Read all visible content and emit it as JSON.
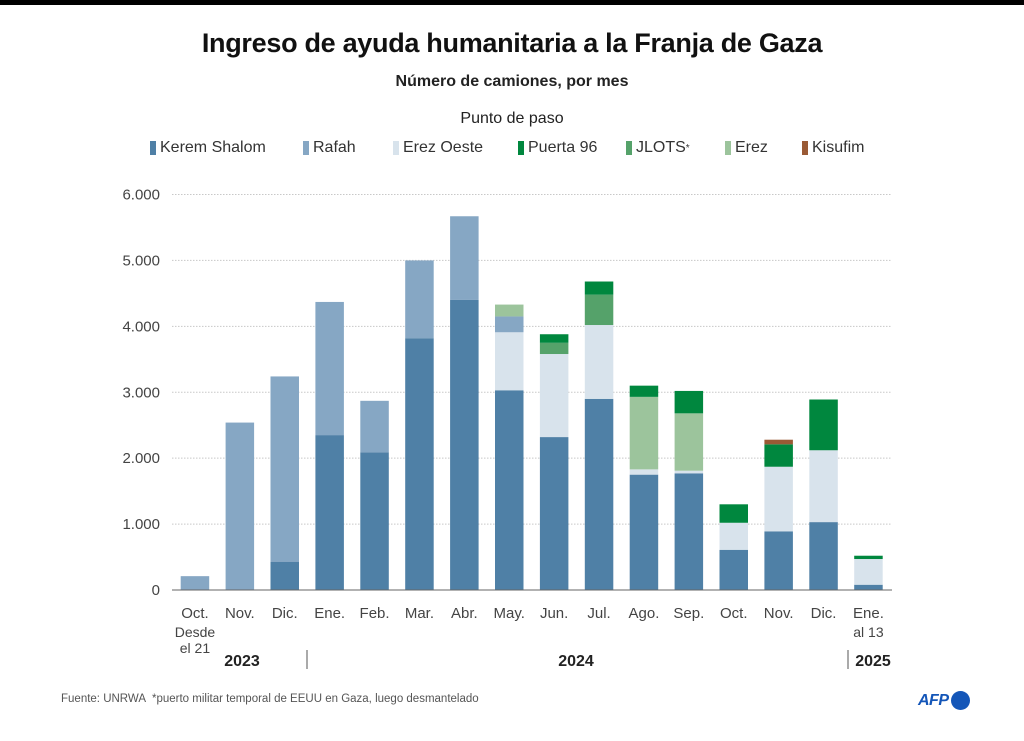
{
  "header": {
    "title": "Ingreso de ayuda humanitaria a la Franja de Gaza",
    "subtitle": "Número de camiones, por mes",
    "legend_title": "Punto de paso"
  },
  "chart_data": {
    "type": "bar",
    "stacked": true,
    "title": "Ingreso de ayuda humanitaria a la Franja de Gaza",
    "subtitle": "Número de camiones, por mes",
    "xlabel": "",
    "ylabel": "",
    "ylim": [
      0,
      6000
    ],
    "yticks": [
      0,
      1000,
      2000,
      3000,
      4000,
      5000,
      6000
    ],
    "ytick_labels": [
      "0",
      "1.000",
      "2.000",
      "3.000",
      "4.000",
      "5.000",
      "6.000"
    ],
    "grid": true,
    "legend_title": "Punto de paso",
    "legend_position": "top",
    "categories": [
      "Oct.",
      "Nov.",
      "Dic.",
      "Ene.",
      "Feb.",
      "Mar.",
      "Abr.",
      "May.",
      "Jun.",
      "Jul.",
      "Ago.",
      "Sep.",
      "Oct.",
      "Nov.",
      "Dic.",
      "Ene."
    ],
    "category_sublabels": [
      "Desde el 21",
      "",
      "",
      "",
      "",
      "",
      "",
      "",
      "",
      "",
      "",
      "",
      "",
      "",
      "",
      "al 13"
    ],
    "year_groups": [
      {
        "label": "2023",
        "start": 0,
        "end": 2
      },
      {
        "label": "2024",
        "start": 3,
        "end": 14
      },
      {
        "label": "2025",
        "start": 15,
        "end": 15
      }
    ],
    "series": [
      {
        "name": "Kerem Shalom",
        "color": "#4f80a6",
        "values": [
          0,
          0,
          430,
          2350,
          2090,
          3820,
          4400,
          3030,
          2320,
          2900,
          1750,
          1770,
          610,
          890,
          1030,
          80
        ]
      },
      {
        "name": "Erez Oeste",
        "color": "#d8e3ec",
        "values": [
          0,
          0,
          0,
          0,
          0,
          0,
          0,
          880,
          1260,
          1120,
          80,
          40,
          410,
          980,
          1090,
          390
        ]
      },
      {
        "name": "Rafah",
        "color": "#86a7c4",
        "values": [
          210,
          2540,
          2810,
          2020,
          780,
          1180,
          1270,
          240,
          0,
          0,
          0,
          0,
          0,
          0,
          0,
          0
        ]
      },
      {
        "name": "JLOTS",
        "sup": "*",
        "color": "#55a26a",
        "values": [
          0,
          0,
          0,
          0,
          0,
          0,
          0,
          0,
          170,
          460,
          0,
          0,
          0,
          0,
          0,
          0
        ]
      },
      {
        "name": "Erez",
        "color": "#9cc49c",
        "values": [
          0,
          0,
          0,
          0,
          0,
          0,
          0,
          180,
          0,
          0,
          1100,
          870,
          0,
          0,
          0,
          0
        ]
      },
      {
        "name": "Puerta 96",
        "color": "#00873e",
        "values": [
          0,
          0,
          0,
          0,
          0,
          0,
          0,
          0,
          130,
          200,
          170,
          340,
          280,
          340,
          770,
          50
        ]
      },
      {
        "name": "Kisufim",
        "color": "#9a5a35",
        "values": [
          0,
          0,
          0,
          0,
          0,
          0,
          0,
          0,
          0,
          0,
          0,
          0,
          0,
          70,
          0,
          0
        ]
      }
    ],
    "legend_order": [
      "Kerem Shalom",
      "Rafah",
      "Erez Oeste",
      "Puerta 96",
      "JLOTS",
      "Erez",
      "Kisufim"
    ]
  },
  "footer": {
    "source": "Fuente: UNRWA",
    "note": "*puerto militar temporal de EEUU en Gaza, luego desmantelado",
    "logo": "AFP"
  }
}
